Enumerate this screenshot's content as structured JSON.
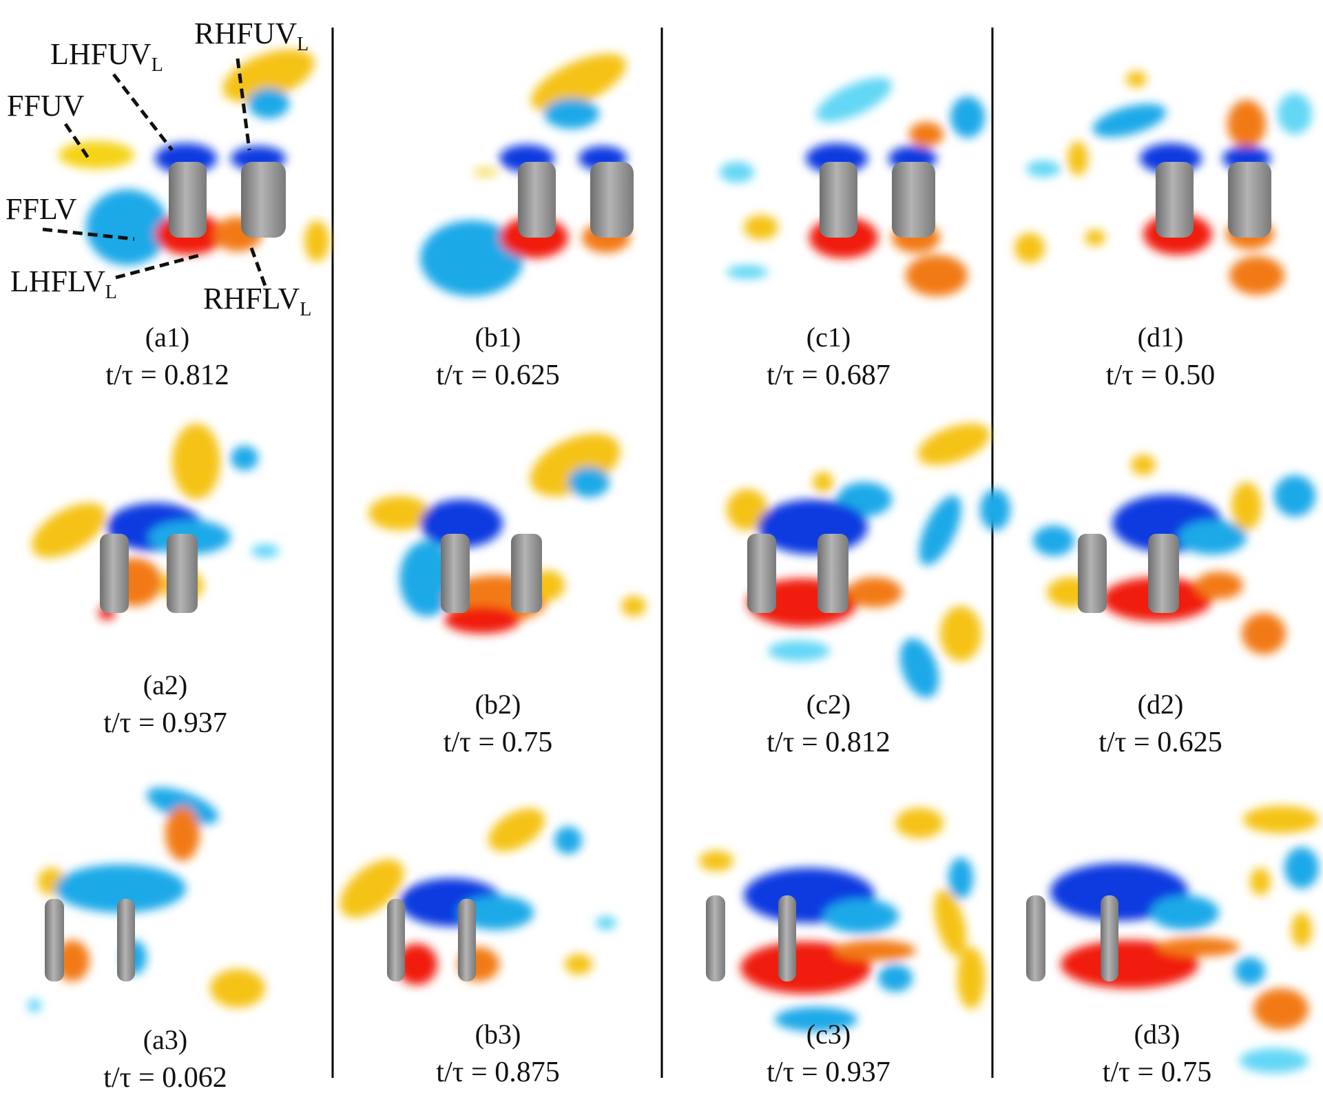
{
  "colors": {
    "negative_strong": "#0a2fe0",
    "negative": "#1aa9e8",
    "negative_light": "#63d7f5",
    "positive_strong": "#f01c0c",
    "positive": "#f27a12",
    "positive_light": "#f7cf13",
    "body": "#8f8f8f",
    "divider": "#000000"
  },
  "annotations": {
    "lhfuv": "LHFUV",
    "rhfuv": "RHFUV",
    "ffuv": "FFUV",
    "fflv": "FFLV",
    "lhflv": "LHFLV",
    "rhflv": "RHFLV",
    "sub": "L"
  },
  "time_prefix": "t/τ = ",
  "panels": [
    {
      "label": "(a1)",
      "time": "0.812"
    },
    {
      "label": "(b1)",
      "time": "0.625"
    },
    {
      "label": "(c1)",
      "time": "0.687"
    },
    {
      "label": "(d1)",
      "time": "0.50"
    },
    {
      "label": "(a2)",
      "time": "0.937"
    },
    {
      "label": "(b2)",
      "time": "0.75"
    },
    {
      "label": "(c2)",
      "time": "0.812"
    },
    {
      "label": "(d2)",
      "time": "0.625"
    },
    {
      "label": "(a3)",
      "time": "0.062"
    },
    {
      "label": "(b3)",
      "time": "0.875"
    },
    {
      "label": "(c3)",
      "time": "0.937"
    },
    {
      "label": "(d3)",
      "time": "0.75"
    }
  ]
}
